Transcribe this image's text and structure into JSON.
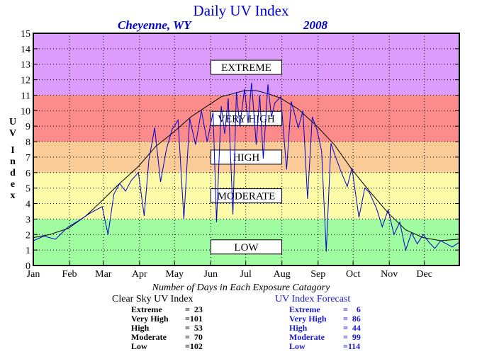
{
  "header": {
    "title": "Daily UV Index",
    "location": "Cheyenne, WY",
    "year": "2008"
  },
  "colors": {
    "low": "#a0fca0",
    "moderate": "#fcfca8",
    "high": "#fccc98",
    "very_high": "#fc8c8c",
    "extreme": "#dc9cfc",
    "forecast_line": "#0000cc",
    "clear_sky_line": "#000000"
  },
  "chart_data": {
    "type": "line",
    "ylabel": "UV Index",
    "ylim": [
      0,
      15
    ],
    "yticks": [
      "0",
      "1",
      "2",
      "3",
      "4",
      "5",
      "6",
      "7",
      "8",
      "9",
      "10",
      "11",
      "12",
      "13",
      "14",
      "15"
    ],
    "xticks": [
      "Jan",
      "Feb",
      "Mar",
      "Apr",
      "May",
      "Jun",
      "Jul",
      "Aug",
      "Sep",
      "Oct",
      "Nov",
      "Dec"
    ],
    "grid": true,
    "bands": [
      {
        "label": "LOW",
        "from": 0,
        "to": 3,
        "color": "#a0fca0",
        "label_at": 1.2
      },
      {
        "label": "MODERATE",
        "from": 3,
        "to": 6,
        "color": "#fcfca8",
        "label_at": 4.5
      },
      {
        "label": "HIGH",
        "from": 6,
        "to": 8,
        "color": "#fccc98",
        "label_at": 7.0
      },
      {
        "label": "VERY HIGH",
        "from": 8,
        "to": 11,
        "color": "#fc8c8c",
        "label_at": 9.5
      },
      {
        "label": "EXTREME",
        "from": 11,
        "to": 15,
        "color": "#dc9cfc",
        "label_at": 12.8
      }
    ],
    "series": [
      {
        "name": "Clear Sky UV Index",
        "color": "#000000",
        "x": [
          1,
          15,
          31,
          46,
          60,
          75,
          91,
          106,
          121,
          136,
          152,
          162,
          172,
          182,
          192,
          202,
          213,
          228,
          244,
          259,
          274,
          289,
          305,
          320,
          335,
          350,
          366
        ],
        "values": [
          1.8,
          2.0,
          2.4,
          3.2,
          4.2,
          5.3,
          6.4,
          7.7,
          8.6,
          9.6,
          10.4,
          10.9,
          11.1,
          11.3,
          11.3,
          11.1,
          10.8,
          10.1,
          9.0,
          7.8,
          6.2,
          4.8,
          3.4,
          2.3,
          1.8,
          1.6,
          1.7
        ]
      },
      {
        "name": "UV Index Forecast",
        "color": "#0000cc",
        "x": [
          1,
          10,
          20,
          31,
          40,
          50,
          60,
          65,
          70,
          75,
          80,
          85,
          91,
          96,
          100,
          105,
          110,
          115,
          120,
          125,
          130,
          135,
          140,
          145,
          150,
          155,
          158,
          162,
          165,
          168,
          172,
          175,
          178,
          182,
          185,
          188,
          192,
          195,
          198,
          202,
          205,
          208,
          213,
          218,
          222,
          228,
          232,
          236,
          240,
          244,
          248,
          252,
          256,
          260,
          265,
          270,
          274,
          280,
          285,
          289,
          295,
          300,
          305,
          310,
          315,
          320,
          325,
          330,
          335,
          340,
          345,
          350,
          355,
          360,
          366
        ],
        "values": [
          1.6,
          1.9,
          1.7,
          2.5,
          2.9,
          3.4,
          3.8,
          2.0,
          4.6,
          5.3,
          4.8,
          5.5,
          6.0,
          3.2,
          6.8,
          8.9,
          5.4,
          7.5,
          8.8,
          9.4,
          3.0,
          9.5,
          7.8,
          10.0,
          8.0,
          9.9,
          2.8,
          10.3,
          8.5,
          10.8,
          3.3,
          11.2,
          9.0,
          11.4,
          9.2,
          11.8,
          7.8,
          11.0,
          6.9,
          11.7,
          9.6,
          10.5,
          10.9,
          6.2,
          10.6,
          8.9,
          10.0,
          4.3,
          9.6,
          8.8,
          7.4,
          0.9,
          7.9,
          7.0,
          6.0,
          5.1,
          6.3,
          3.1,
          5.0,
          4.7,
          3.7,
          2.5,
          3.6,
          2.0,
          2.8,
          1.0,
          2.1,
          1.4,
          2.0,
          1.5,
          1.1,
          1.6,
          1.4,
          1.2,
          1.5
        ]
      }
    ]
  },
  "counts": {
    "heading": "Number of Days in Each Exposure Catagory",
    "clear_sky": {
      "title": "Clear Sky UV Index",
      "rows": [
        {
          "label": "Extreme",
          "value": "=  23"
        },
        {
          "label": "Very High",
          "value": "=101"
        },
        {
          "label": "High",
          "value": "=  53"
        },
        {
          "label": "Moderate",
          "value": "=  70"
        },
        {
          "label": "Low",
          "value": "=102"
        }
      ]
    },
    "forecast": {
      "title": "UV Index Forecast",
      "rows": [
        {
          "label": "Extreme",
          "value": "=    6"
        },
        {
          "label": "Very High",
          "value": "=  86"
        },
        {
          "label": "High",
          "value": "=  44"
        },
        {
          "label": "Moderate",
          "value": "=  99"
        },
        {
          "label": "Low",
          "value": "=114"
        }
      ]
    }
  }
}
